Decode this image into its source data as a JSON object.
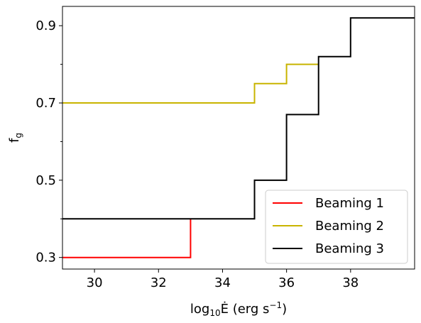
{
  "chart_data": {
    "type": "line",
    "step": true,
    "xlabel": "log₁₀Ė (erg s⁻¹)",
    "ylabel": "f_g",
    "xlim": [
      29,
      40
    ],
    "ylim": [
      0.27,
      0.95
    ],
    "xticks": [
      30,
      32,
      34,
      36,
      38
    ],
    "yticks": [
      0.3,
      0.5,
      0.7,
      0.9
    ],
    "y_minor_ticks": [
      0.4,
      0.6,
      0.8
    ],
    "grid": false,
    "legend_position": "bottom-right",
    "series": [
      {
        "name": "Beaming 1",
        "color": "#ff0000",
        "x": [
          29,
          33,
          33
        ],
        "y": [
          0.3,
          0.3,
          0.4
        ]
      },
      {
        "name": "Beaming 2",
        "color": "#c8b400",
        "x": [
          29,
          35,
          35,
          36,
          36,
          37
        ],
        "y": [
          0.7,
          0.7,
          0.75,
          0.75,
          0.8,
          0.8
        ]
      },
      {
        "name": "Beaming 3",
        "color": "#000000",
        "x": [
          29,
          35,
          35,
          36,
          36,
          37,
          37,
          38,
          38,
          40
        ],
        "y": [
          0.4,
          0.4,
          0.5,
          0.5,
          0.67,
          0.67,
          0.82,
          0.82,
          0.92,
          0.92
        ]
      }
    ]
  }
}
